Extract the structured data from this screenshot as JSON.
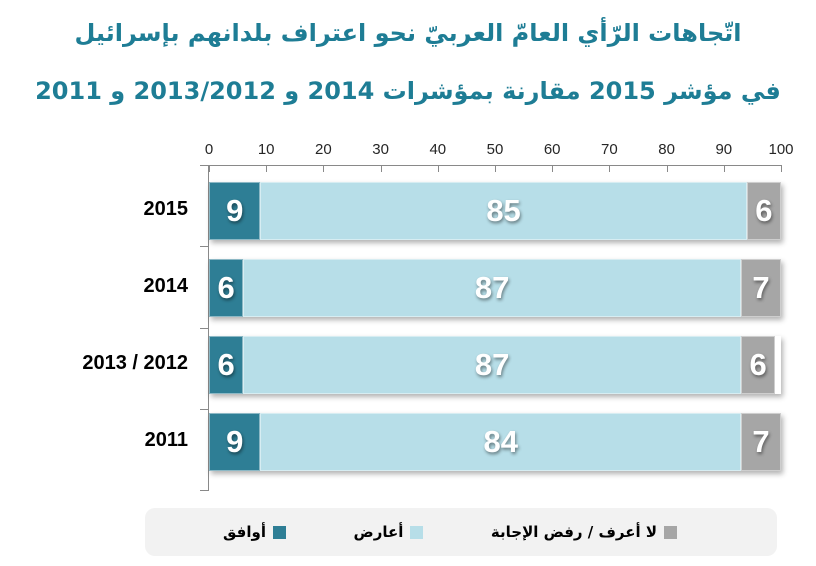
{
  "title": {
    "line1": "اتّجاهات الرّأي العامّ العربيّ نحو اعتراف بلدانهم بإسرائيل",
    "line2": "في مؤشر 2015 مقارنة بمؤشرات 2014 و 2013/2012 و 2011"
  },
  "colors": {
    "title": "#1E7D95",
    "agree": "#2E7E95",
    "oppose": "#B7DEE8",
    "no_answer": "#A6A6A6",
    "axis_line": "#898989",
    "legend_bg": "#F2F2F2"
  },
  "chart_data": {
    "type": "bar",
    "orientation": "horizontal",
    "stacked": true,
    "direction": "rtl",
    "title": "اتّجاهات الرّأي العامّ العربيّ نحو اعتراف بلدانهم بإسرائيل في مؤشر 2015 مقارنة بمؤشرات 2014 و 2013/2012 و 2011",
    "categories": [
      "2015",
      "2014",
      "2013 / 2012",
      "2011"
    ],
    "series": [
      {
        "name": "أوافق",
        "color": "#2E7E95",
        "values": [
          9,
          6,
          6,
          9
        ]
      },
      {
        "name": "أعارض",
        "color": "#B7DEE8",
        "values": [
          85,
          87,
          87,
          84
        ]
      },
      {
        "name": "لا أعرف /  رفض الإجابة",
        "color": "#A6A6A6",
        "values": [
          6,
          7,
          6,
          7
        ]
      }
    ],
    "x_axis": {
      "position": "top",
      "min": 0,
      "max": 100,
      "step": 10,
      "tick_labels": [
        "0",
        "10",
        "20",
        "30",
        "40",
        "50",
        "60",
        "70",
        "80",
        "90",
        "100"
      ],
      "grid": false
    },
    "legend": {
      "position": "bottom",
      "items": [
        "أوافق",
        "أعارض",
        "لا أعرف /  رفض الإجابة"
      ]
    }
  }
}
